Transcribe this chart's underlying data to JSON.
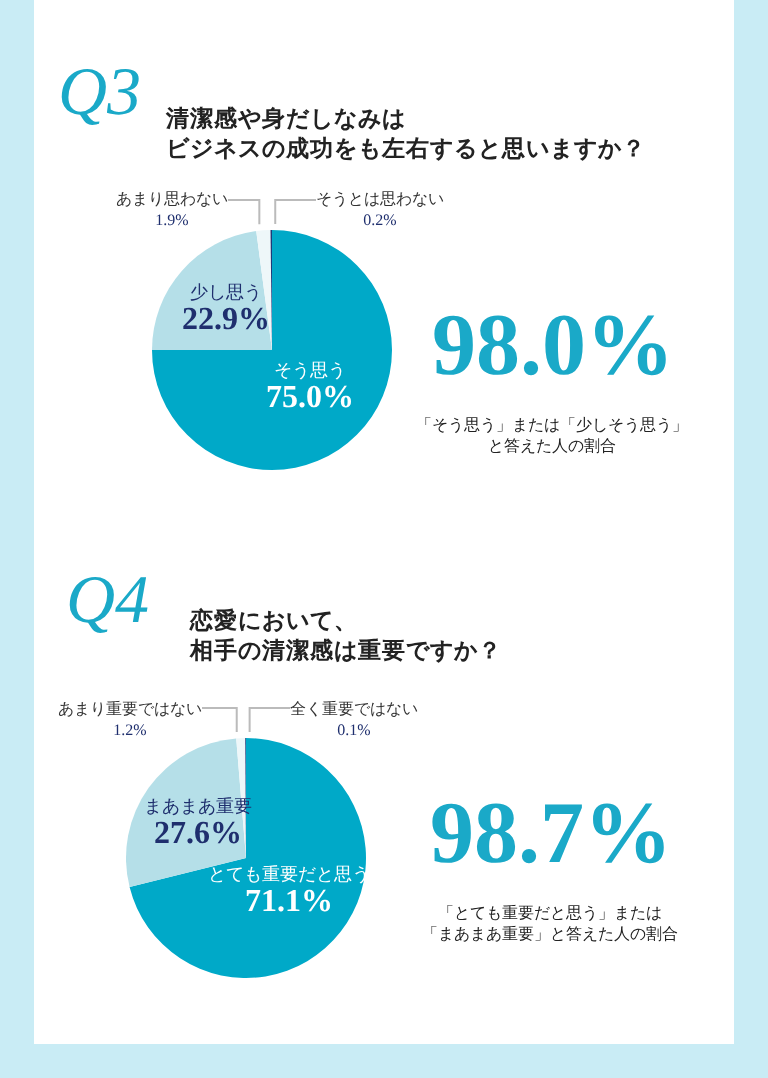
{
  "chart_data": [
    {
      "type": "pie",
      "subtitle": "Q3",
      "title": "清潔感や身だしなみはビジネスの成功をも左右すると思いますか？",
      "categories": [
        "そう思う",
        "少し思う",
        "あまり思わない",
        "そうとは思わない"
      ],
      "values": [
        75.0,
        22.9,
        1.9,
        0.2
      ],
      "colors": [
        "#00a9c8",
        "#b5dfe8",
        "#eef7f9",
        "#1f3a78"
      ],
      "value_labels": [
        "75.0%",
        "22.9%",
        "1.9%",
        "0.2%"
      ],
      "annotations": [
        "98.0%",
        "「そう思う」または「少しそう思う」と答えた人の割合"
      ]
    },
    {
      "type": "pie",
      "subtitle": "Q4",
      "title": "恋愛において、相手の清潔感は重要ですか？",
      "categories": [
        "とても重要だと思う",
        "まあまあ重要",
        "あまり重要ではない",
        "全く重要ではない"
      ],
      "values": [
        71.1,
        27.6,
        1.2,
        0.1
      ],
      "colors": [
        "#00a9c8",
        "#b5dfe8",
        "#eef7f9",
        "#1f3a78"
      ],
      "value_labels": [
        "71.1%",
        "27.6%",
        "1.2%",
        "0.1%"
      ],
      "annotations": [
        "98.7%",
        "「とても重要だと思う」または「まあまあ重要」と答えた人の割合"
      ]
    }
  ]
}
